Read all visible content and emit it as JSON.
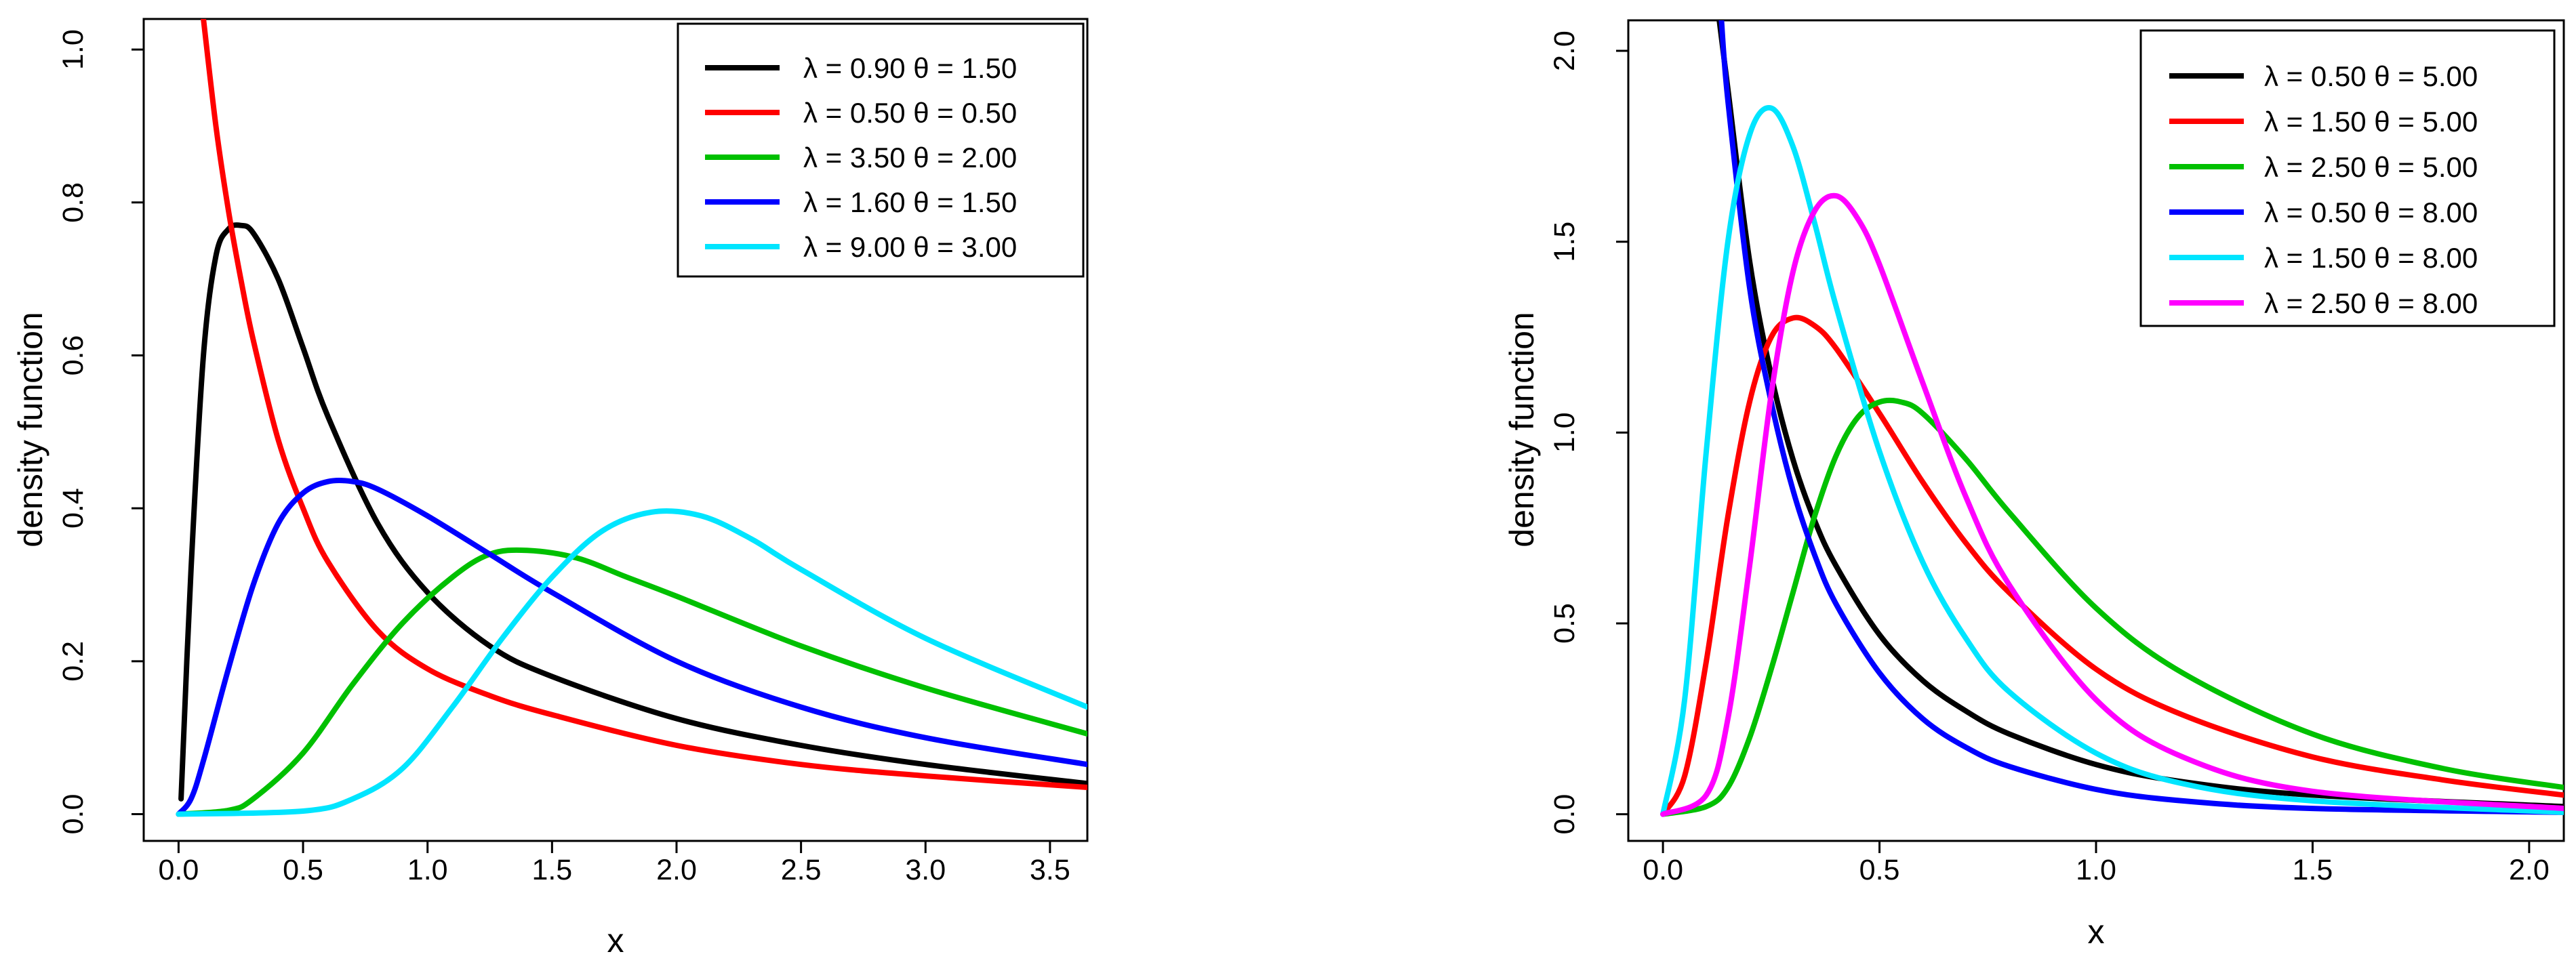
{
  "chart_data": [
    {
      "type": "line",
      "title": "",
      "xlabel": "x",
      "ylabel": "density function",
      "xlim": [
        -0.14,
        3.65
      ],
      "ylim": [
        -0.035,
        1.04
      ],
      "xticks": [
        "0.0",
        "0.5",
        "1.0",
        "1.5",
        "2.0",
        "2.5",
        "3.0",
        "3.5"
      ],
      "yticks": [
        "0.0",
        "0.2",
        "0.4",
        "0.6",
        "0.8",
        "1.0"
      ],
      "legend_position": "top-right",
      "series": [
        {
          "name": "λ = 0.90  θ = 1.50",
          "color": "#000000",
          "lambda": 0.9,
          "theta": 1.5,
          "x": [
            0.01,
            0.05,
            0.1,
            0.15,
            0.2,
            0.25,
            0.3,
            0.4,
            0.5,
            0.6,
            0.8,
            1.0,
            1.25,
            1.5,
            2.0,
            2.5,
            3.0,
            3.65
          ],
          "y": [
            0.02,
            0.32,
            0.6,
            0.73,
            0.765,
            0.77,
            0.76,
            0.7,
            0.61,
            0.52,
            0.38,
            0.29,
            0.22,
            0.18,
            0.125,
            0.09,
            0.065,
            0.04
          ]
        },
        {
          "name": "λ = 0.50  θ = 0.50",
          "color": "#ff0000",
          "lambda": 0.5,
          "theta": 0.5,
          "x": [
            0.1,
            0.15,
            0.2,
            0.25,
            0.3,
            0.4,
            0.5,
            0.6,
            0.8,
            1.0,
            1.25,
            1.5,
            2.0,
            2.5,
            3.0,
            3.65
          ],
          "y": [
            1.04,
            0.9,
            0.79,
            0.7,
            0.62,
            0.49,
            0.4,
            0.33,
            0.24,
            0.19,
            0.155,
            0.13,
            0.09,
            0.065,
            0.05,
            0.035
          ]
        },
        {
          "name": "λ = 3.50  θ = 2.00",
          "color": "#00c000",
          "lambda": 3.5,
          "theta": 2.0,
          "x": [
            0.0,
            0.2,
            0.3,
            0.5,
            0.7,
            0.9,
            1.1,
            1.25,
            1.4,
            1.6,
            1.8,
            2.0,
            2.5,
            3.0,
            3.65
          ],
          "y": [
            0.0,
            0.005,
            0.02,
            0.08,
            0.17,
            0.25,
            0.31,
            0.34,
            0.345,
            0.335,
            0.31,
            0.285,
            0.22,
            0.165,
            0.105
          ]
        },
        {
          "name": "λ = 1.60  θ = 1.50",
          "color": "#0000ff",
          "lambda": 1.6,
          "theta": 1.5,
          "x": [
            0.0,
            0.05,
            0.1,
            0.2,
            0.3,
            0.4,
            0.5,
            0.6,
            0.7,
            0.8,
            1.0,
            1.25,
            1.5,
            2.0,
            2.5,
            3.0,
            3.65
          ],
          "y": [
            0.0,
            0.02,
            0.07,
            0.19,
            0.3,
            0.38,
            0.42,
            0.435,
            0.435,
            0.425,
            0.39,
            0.34,
            0.29,
            0.2,
            0.14,
            0.1,
            0.065
          ]
        },
        {
          "name": "λ = 9.00  θ = 3.00",
          "color": "#00e5ff",
          "lambda": 9.0,
          "theta": 3.0,
          "x": [
            0.0,
            0.5,
            0.7,
            0.9,
            1.1,
            1.3,
            1.5,
            1.7,
            1.9,
            2.1,
            2.3,
            2.5,
            3.0,
            3.65
          ],
          "y": [
            0.0,
            0.004,
            0.02,
            0.06,
            0.14,
            0.23,
            0.31,
            0.37,
            0.395,
            0.39,
            0.36,
            0.32,
            0.23,
            0.14
          ]
        }
      ]
    },
    {
      "type": "line",
      "title": "",
      "xlabel": "x",
      "ylabel": "density function",
      "xlim": [
        -0.08,
        2.08
      ],
      "ylim": [
        -0.07,
        2.08
      ],
      "xticks": [
        "0.0",
        "0.5",
        "1.0",
        "1.5",
        "2.0"
      ],
      "yticks": [
        "0.0",
        "0.5",
        "1.0",
        "1.5",
        "2.0"
      ],
      "legend_position": "top-right",
      "series": [
        {
          "name": "λ = 0.50  θ = 5.00",
          "color": "#000000",
          "lambda": 0.5,
          "theta": 5.0,
          "x": [
            0.13,
            0.15,
            0.2,
            0.25,
            0.3,
            0.35,
            0.4,
            0.5,
            0.6,
            0.7,
            0.8,
            1.0,
            1.2,
            1.5,
            2.08
          ],
          "y": [
            2.08,
            1.9,
            1.45,
            1.15,
            0.93,
            0.77,
            0.65,
            0.47,
            0.35,
            0.27,
            0.21,
            0.13,
            0.085,
            0.05,
            0.02
          ]
        },
        {
          "name": "λ = 1.50  θ = 5.00",
          "color": "#ff0000",
          "lambda": 1.5,
          "theta": 5.0,
          "x": [
            0.0,
            0.05,
            0.1,
            0.15,
            0.2,
            0.25,
            0.3,
            0.35,
            0.4,
            0.5,
            0.6,
            0.7,
            0.8,
            1.0,
            1.2,
            1.5,
            1.8,
            2.08
          ],
          "y": [
            0.0,
            0.1,
            0.4,
            0.78,
            1.08,
            1.25,
            1.3,
            1.28,
            1.22,
            1.05,
            0.87,
            0.71,
            0.58,
            0.38,
            0.26,
            0.15,
            0.09,
            0.05
          ]
        },
        {
          "name": "λ = 2.50  θ = 5.00",
          "color": "#00c000",
          "lambda": 2.5,
          "theta": 5.0,
          "x": [
            0.0,
            0.1,
            0.15,
            0.2,
            0.25,
            0.3,
            0.35,
            0.4,
            0.45,
            0.5,
            0.55,
            0.6,
            0.7,
            0.8,
            1.0,
            1.2,
            1.5,
            1.8,
            2.08
          ],
          "y": [
            0.0,
            0.02,
            0.07,
            0.2,
            0.38,
            0.58,
            0.78,
            0.94,
            1.04,
            1.08,
            1.08,
            1.05,
            0.93,
            0.79,
            0.54,
            0.37,
            0.21,
            0.12,
            0.07
          ]
        },
        {
          "name": "λ = 0.50  θ = 8.00",
          "color": "#0000ff",
          "lambda": 0.5,
          "theta": 8.0,
          "x": [
            0.135,
            0.15,
            0.2,
            0.25,
            0.3,
            0.35,
            0.4,
            0.5,
            0.6,
            0.7,
            0.8,
            1.0,
            1.2,
            1.5,
            2.08
          ],
          "y": [
            2.08,
            1.87,
            1.38,
            1.08,
            0.85,
            0.68,
            0.55,
            0.37,
            0.25,
            0.175,
            0.125,
            0.065,
            0.035,
            0.015,
            0.005
          ]
        },
        {
          "name": "λ = 1.50  θ = 8.00",
          "color": "#00e5ff",
          "lambda": 1.5,
          "theta": 8.0,
          "x": [
            0.0,
            0.05,
            0.1,
            0.15,
            0.2,
            0.25,
            0.3,
            0.35,
            0.4,
            0.5,
            0.6,
            0.7,
            0.8,
            1.0,
            1.2,
            1.5,
            2.08
          ],
          "y": [
            0.0,
            0.3,
            0.95,
            1.5,
            1.78,
            1.85,
            1.75,
            1.55,
            1.33,
            0.95,
            0.66,
            0.46,
            0.32,
            0.16,
            0.08,
            0.035,
            0.005
          ]
        },
        {
          "name": "λ = 2.50  θ = 8.00",
          "color": "#ff00ff",
          "lambda": 2.5,
          "theta": 8.0,
          "x": [
            0.0,
            0.1,
            0.15,
            0.2,
            0.25,
            0.3,
            0.35,
            0.4,
            0.45,
            0.5,
            0.6,
            0.7,
            0.8,
            1.0,
            1.2,
            1.5,
            2.08
          ],
          "y": [
            0.0,
            0.05,
            0.25,
            0.65,
            1.1,
            1.42,
            1.58,
            1.62,
            1.56,
            1.44,
            1.13,
            0.83,
            0.6,
            0.3,
            0.15,
            0.06,
            0.015
          ]
        }
      ]
    }
  ]
}
